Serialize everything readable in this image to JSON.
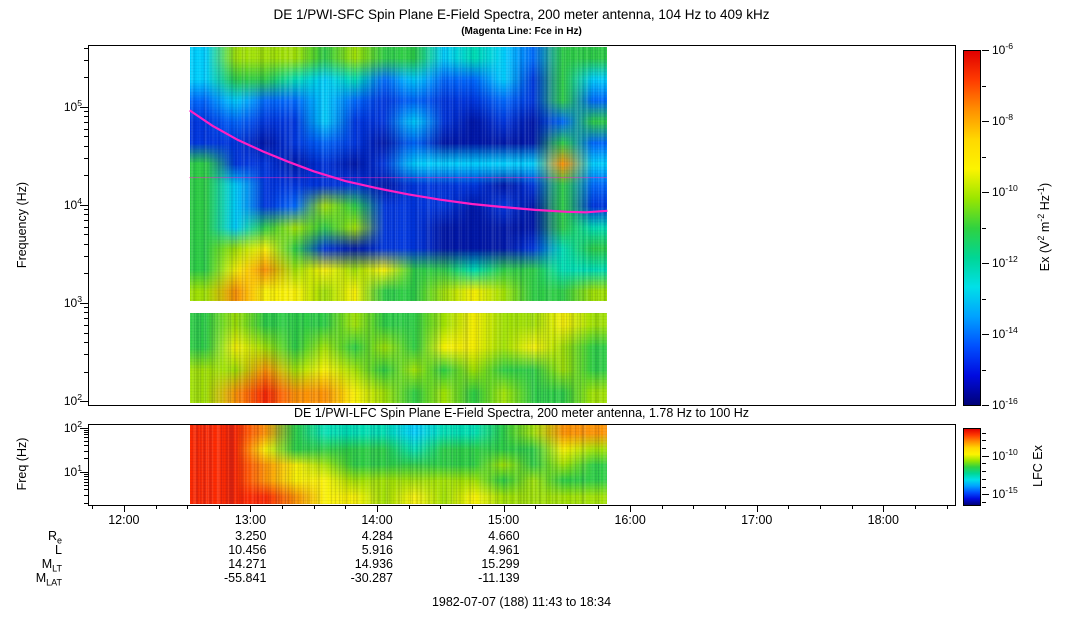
{
  "figure": {
    "background": "#ffffff",
    "footer": "1982-07-07 (188) 11:43 to 18:34"
  },
  "palette": {
    "DK": "#0018a8",
    "MB": "#0038e0",
    "LB": "#006cff",
    "CY": "#00d4ff",
    "CG": "#00e2b4",
    "GR": "#2ed044",
    "YG": "#a2e400",
    "YL": "#fcf400",
    "OR": "#ff9400",
    "RD": "#ff2a00"
  },
  "colorbar_gradient": [
    "#e00000",
    "#ff3c00",
    "#ff9000",
    "#ffd800",
    "#fcf400",
    "#9ae600",
    "#30d240",
    "#00d695",
    "#00e0e8",
    "#00a2ff",
    "#0050ff",
    "#000be0",
    "#000177"
  ],
  "chart_data": [
    {
      "type": "heatmap",
      "id": "sfc",
      "title": "DE 1/PWI-SFC  Spin Plane E-Field Spectra, 200 meter antenna, 104 Hz to 409 kHz",
      "subtitle": "(Magenta Line: Fce in Hz)",
      "ylabel": "Frequency (Hz)",
      "freq_range_hz": [
        104,
        409000
      ],
      "yticks": [
        "10^5",
        "10^4",
        "10^3",
        "10^2"
      ],
      "ylim_log10": [
        1.96,
        5.63
      ],
      "data_time_range": [
        "12:31",
        "15:49"
      ],
      "bands": [
        {
          "name": "sfc-upper-band",
          "log10_top": 5.61,
          "log10_bottom": 3.02,
          "grid": [
            [
              "CY",
              "YG",
              "YG",
              "YG",
              "GR",
              "YG",
              "GR",
              "GR",
              "CY",
              "CG",
              "CY",
              "LB",
              "GR",
              "GR"
            ],
            [
              "CY",
              "GR",
              "GR",
              "CG",
              "CY",
              "CG",
              "LB",
              "CY",
              "LB",
              "LB",
              "CY",
              "MB",
              "GR",
              "CY"
            ],
            [
              "LB",
              "CY",
              "LB",
              "LB",
              "CY",
              "LB",
              "MB",
              "LB",
              "MB",
              "MB",
              "LB",
              "MB",
              "GR",
              "LB"
            ],
            [
              "MB",
              "LB",
              "MB",
              "MB",
              "CY",
              "MB",
              "MB",
              "CY",
              "MB",
              "DK",
              "MB",
              "DK",
              "LB",
              "GR"
            ],
            [
              "MB",
              "MB",
              "DK",
              "MB",
              "LB",
              "MB",
              "DK",
              "LB",
              "DK",
              "DK",
              "DK",
              "DK",
              "GR",
              "LB"
            ],
            [
              "GR",
              "MB",
              "MB",
              "DK",
              "MB",
              "DK",
              "MB",
              "CY",
              "CY",
              "CY",
              "CY",
              "CY",
              "OR",
              "CY"
            ],
            [
              "GR",
              "CY",
              "MB",
              "MB",
              "MB",
              "MB",
              "DK",
              "MB",
              "MB",
              "MB",
              "DK",
              "MB",
              "GR",
              "LB"
            ],
            [
              "GR",
              "CY",
              "MB",
              "LB",
              "YG",
              "GR",
              "MB",
              "MB",
              "MB",
              "DK",
              "MB",
              "DK",
              "GR",
              "MB"
            ],
            [
              "GR",
              "CY",
              "GR",
              "YG",
              "GR",
              "YG",
              "MB",
              "MB",
              "DK",
              "DK",
              "DK",
              "DK",
              "GR",
              "CG"
            ],
            [
              "GR",
              "YG",
              "YL",
              "GR",
              "MB",
              "DK",
              "MB",
              "MB",
              "DK",
              "DK",
              "DK",
              "MB",
              "CG",
              "GR"
            ],
            [
              "GR",
              "YL",
              "OR",
              "YG",
              "YL",
              "YG",
              "YL",
              "GR",
              "GR",
              "CG",
              "GR",
              "GR",
              "CG",
              "CG"
            ],
            [
              "YG",
              "OR",
              "YL",
              "YL",
              "YG",
              "YL",
              "GR",
              "GR",
              "YG",
              "YL",
              "YG",
              "GR",
              "GR",
              "YG"
            ]
          ]
        },
        {
          "name": "sfc-lower-band",
          "log10_top": 2.9,
          "log10_bottom": 1.98,
          "grid": [
            [
              "GR",
              "YG",
              "GR",
              "GR",
              "GR",
              "YG",
              "GR",
              "GR",
              "YG",
              "YL",
              "YG",
              "YG",
              "YL",
              "YG"
            ],
            [
              "GR",
              "YL",
              "YG",
              "GR",
              "YG",
              "GR",
              "YG",
              "GR",
              "YL",
              "YL",
              "YG",
              "YL",
              "YG",
              "GR"
            ],
            [
              "YG",
              "YG",
              "OR",
              "YG",
              "YL",
              "YG",
              "GR",
              "YG",
              "GR",
              "YG",
              "GR",
              "GR",
              "YG",
              "GR"
            ],
            [
              "YG",
              "OR",
              "RD",
              "OR",
              "OR",
              "YL",
              "YG",
              "GR",
              "YG",
              "GR",
              "YG",
              "GR",
              "GR",
              "YG"
            ]
          ]
        }
      ],
      "fce_line": {
        "color": "#ff1fc4",
        "points_time_hz": [
          [
            12.52,
            92000
          ],
          [
            12.7,
            64000
          ],
          [
            12.9,
            46000
          ],
          [
            13.1,
            35000
          ],
          [
            13.3,
            27500
          ],
          [
            13.5,
            22000
          ],
          [
            13.75,
            17500
          ],
          [
            14.0,
            14800
          ],
          [
            14.25,
            12800
          ],
          [
            14.5,
            11300
          ],
          [
            14.75,
            10200
          ],
          [
            15.0,
            9500
          ],
          [
            15.25,
            8900
          ],
          [
            15.5,
            8500
          ],
          [
            15.65,
            8400
          ],
          [
            15.82,
            8700
          ]
        ]
      },
      "artifact_line_hz": 19000,
      "colorbar": {
        "label": "Ex (V^2 m^-2 Hz^-1)",
        "log10_range": [
          -6,
          -16
        ],
        "tick_labels": [
          "10^-6",
          "10^-8",
          "10^-10",
          "10^-12",
          "10^-14",
          "10^-16"
        ]
      }
    },
    {
      "type": "heatmap",
      "id": "lfc",
      "title": "DE 1/PWI-LFC  Spin Plane E-Field Spectra, 200 meter antenna, 1.78 Hz to 100 Hz",
      "ylabel": "Freq (Hz)",
      "freq_range_hz": [
        1.78,
        100
      ],
      "yticks": [
        "10^2",
        "10^1"
      ],
      "ylim_log10": [
        0.25,
        2.08
      ],
      "data_time_range": [
        "12:31",
        "15:49"
      ],
      "bands": [
        {
          "name": "lfc-band",
          "log10_top": 2.08,
          "log10_bottom": 0.25,
          "grid": [
            [
              "RD",
              "RD",
              "OR",
              "GR",
              "CG",
              "CG",
              "CG",
              "CY",
              "CG",
              "CG",
              "GR",
              "YG",
              "OR",
              "OR"
            ],
            [
              "RD",
              "RD",
              "YL",
              "GR",
              "GR",
              "GR",
              "GR",
              "CG",
              "GR",
              "GR",
              "GR",
              "GR",
              "YL",
              "YG"
            ],
            [
              "RD",
              "RD",
              "OR",
              "YL",
              "YG",
              "GR",
              "GR",
              "GR",
              "GR",
              "GR",
              "YG",
              "GR",
              "YG",
              "GR"
            ],
            [
              "RD",
              "RD",
              "OR",
              "YL",
              "YL",
              "YG",
              "YG",
              "YG",
              "YG",
              "YG",
              "GR",
              "YG",
              "GR",
              "GR"
            ],
            [
              "RD",
              "RD",
              "RD",
              "OR",
              "YL",
              "YL",
              "YG",
              "YL",
              "YG",
              "YL",
              "YG",
              "YG",
              "YG",
              "YG"
            ]
          ]
        }
      ],
      "colorbar": {
        "label": "LFC Ex",
        "log10_range": [
          -6.4,
          -16.4
        ],
        "tick_labels": [
          "10^-10",
          "10^-15"
        ]
      }
    }
  ],
  "xaxis": {
    "start": "11:43",
    "end": "18:34",
    "hour_labels": [
      "12:00",
      "13:00",
      "14:00",
      "15:00",
      "16:00",
      "17:00",
      "18:00"
    ]
  },
  "ephemeris": {
    "time_columns": [
      "13:00",
      "14:00",
      "15:00"
    ],
    "rows": [
      {
        "label": "R_e",
        "values": [
          "3.250",
          "4.284",
          "4.660"
        ]
      },
      {
        "label": "L",
        "values": [
          "10.456",
          "5.916",
          "4.961"
        ]
      },
      {
        "label": "M_LT",
        "values": [
          "14.271",
          "14.936",
          "15.299"
        ]
      },
      {
        "label": "M_LAT",
        "values": [
          "-55.841",
          "-30.287",
          "-11.139"
        ]
      }
    ]
  }
}
